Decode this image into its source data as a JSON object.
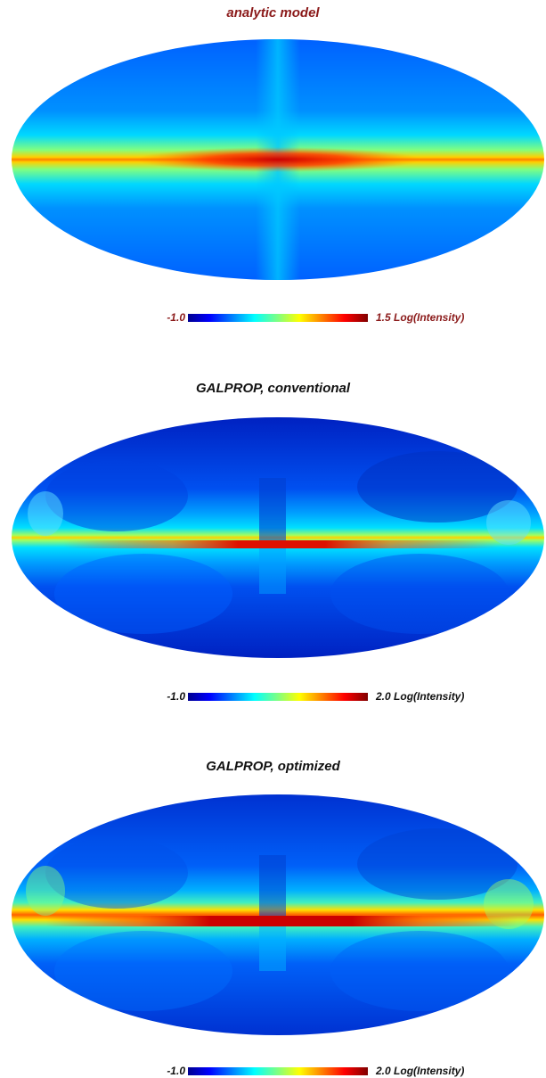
{
  "colors": {
    "title_first": "#8b1a1a",
    "title_other": "#111111",
    "jet": [
      "#00008f",
      "#0000ff",
      "#0080ff",
      "#00ffff",
      "#80ff80",
      "#ffff00",
      "#ff8000",
      "#ff0000",
      "#800000"
    ]
  },
  "panels": [
    {
      "title": "analytic model",
      "colorbar": {
        "min": "-1.0",
        "max": "1.5",
        "unit": "Log(Intensity)"
      }
    },
    {
      "title": "GALPROP, conventional",
      "colorbar": {
        "min": "-1.0",
        "max": "2.0",
        "unit": "Log(Intensity)"
      }
    },
    {
      "title": "GALPROP, optimized",
      "colorbar": {
        "min": "-1.0",
        "max": "2.0",
        "unit": "Log(Intensity)"
      }
    }
  ]
}
